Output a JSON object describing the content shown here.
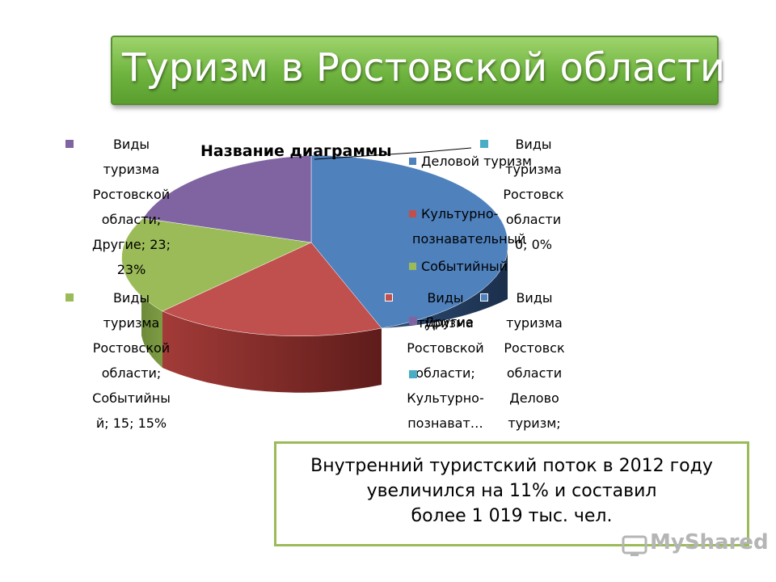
{
  "title": "Туризм в Ростовской области",
  "chart_data": {
    "type": "pie",
    "title": "Название диаграммы",
    "categories": [
      "Деловой туризм",
      "Культурно-познавательный",
      "Событийный",
      "Другие"
    ],
    "values": [
      0,
      0,
      15,
      23
    ],
    "percent": [
      0,
      0,
      15,
      23
    ],
    "series": [
      {
        "name": "Виды туризма Ростовской области",
        "values": [
          0,
          0,
          15,
          23
        ]
      }
    ],
    "colors": [
      "#4f81bd",
      "#c0504d",
      "#9bbb59",
      "#8064a2",
      "#4bacc6"
    ],
    "legend_position": "right",
    "data_labels": {
      "other": [
        "Виды",
        "туризма",
        "Ростовской",
        "области;",
        "Другие; 23;",
        "23%"
      ],
      "event": [
        "Виды",
        "туризма",
        "Ростовской",
        "области;",
        "Событийны",
        "й; 15; 15%"
      ],
      "top_right": [
        "Виды",
        "туризма",
        "Ростовск",
        "области",
        "0; 0%"
      ],
      "culture": [
        "Виды",
        "туризма",
        "Ростовской",
        "области;",
        "Культурно-",
        "познават…"
      ],
      "business": [
        "Виды",
        "туризма",
        "Ростовск",
        "области",
        "Делово",
        "туризм;"
      ],
      "overlap": "Другие"
    },
    "legend": [
      "Деловой туризм",
      "Культурно-",
      "познавательный",
      "Событийный"
    ]
  },
  "note": {
    "line1": "Внутренний туристский поток в 2012 году",
    "line2": "увеличился на 11% и составил",
    "line3": "более 1 019 тыс. чел."
  },
  "watermark": "MyShared"
}
